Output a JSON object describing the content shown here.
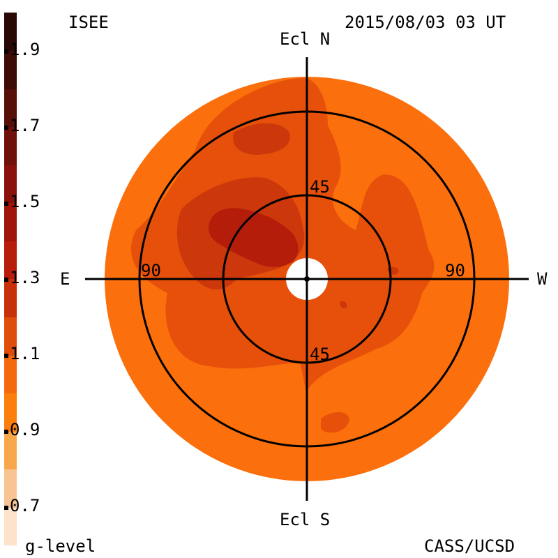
{
  "header": {
    "left_label": "ISEE",
    "timestamp": "2015/08/03 03 UT"
  },
  "footer": {
    "legend_label": "g-level",
    "credit": "CASS/UCSD"
  },
  "axes": {
    "north": "Ecl N",
    "south": "Ecl S",
    "east": "E",
    "west": "W"
  },
  "ring_labels": {
    "inner_top": "45",
    "inner_bottom": "45",
    "outer_left": "90",
    "outer_right": "90"
  },
  "colorbar": {
    "ticks": [
      "1.9",
      "1.7",
      "1.5",
      "1.3",
      "1.1",
      "0.9",
      "0.7"
    ],
    "range": [
      0.6,
      2.0
    ],
    "colors": [
      "#fde2cc",
      "#f9c493",
      "#f8a84a",
      "#fb7f0a",
      "#f5690d",
      "#e04d0a",
      "#c8300a",
      "#b81c0c",
      "#a0140c",
      "#8a100c",
      "#70100a",
      "#561008",
      "#3e0c06",
      "#2a0805"
    ]
  },
  "map_colors": {
    "background": "#fb6f0c",
    "level_1": "#e6500a",
    "level_2": "#cc370b",
    "level_3": "#b51d0b",
    "hole": "#ffffff"
  }
}
